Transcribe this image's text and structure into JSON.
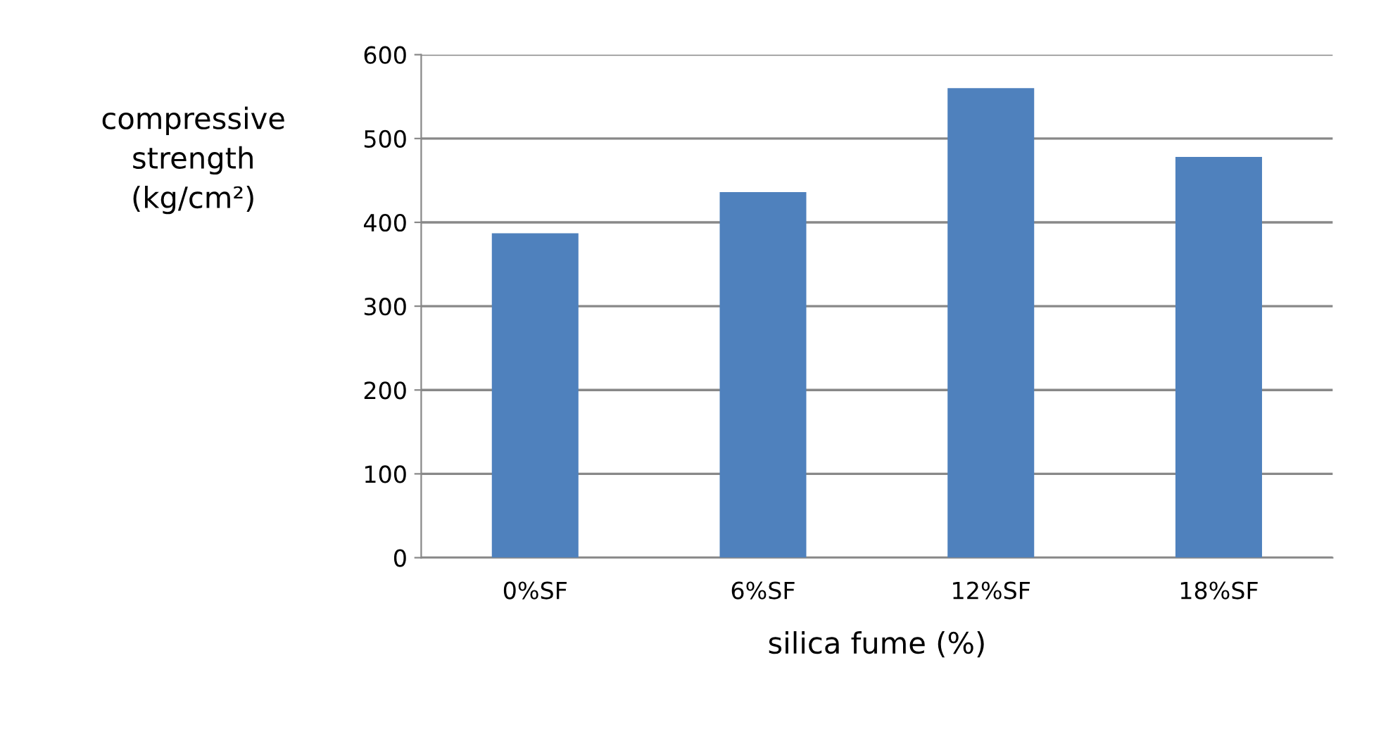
{
  "chart_data": {
    "type": "bar",
    "categories": [
      "0%SF",
      "6%SF",
      "12%SF",
      "18%SF"
    ],
    "values": [
      387,
      436,
      560,
      478
    ],
    "color": "#4f81bd",
    "xlabel": "silica fume (%)",
    "ylabel": "compressive\nstrength\n(kg/cm²)",
    "ylim": [
      0,
      600
    ],
    "yticks": [
      0,
      100,
      200,
      300,
      400,
      500,
      600
    ],
    "grid": "y",
    "legend": false
  }
}
